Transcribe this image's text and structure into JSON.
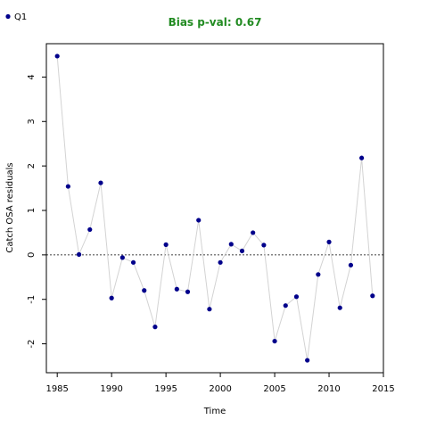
{
  "chart_data": {
    "type": "scatter",
    "title": "Bias p-val: 0.67",
    "xlabel": "Time",
    "ylabel": "Catch OSA residuals",
    "xlim": [
      1984,
      2015
    ],
    "ylim": [
      -2.65,
      4.75
    ],
    "xticks": [
      1985,
      1990,
      1995,
      2000,
      2005,
      2010,
      2015
    ],
    "yticks": [
      -2,
      -1,
      0,
      1,
      2,
      3,
      4
    ],
    "reference_line": 0,
    "legend": {
      "position": "top-left",
      "entries": [
        "Q1"
      ]
    },
    "colors": {
      "points": "#00008b",
      "line": "#d3d3d3",
      "title": "#228b22"
    },
    "series": [
      {
        "name": "Q1",
        "x": [
          1985,
          1986,
          1987,
          1988,
          1989,
          1990,
          1991,
          1992,
          1993,
          1994,
          1995,
          1996,
          1997,
          1998,
          1999,
          2000,
          2001,
          2002,
          2003,
          2004,
          2005,
          2006,
          2007,
          2008,
          2009,
          2010,
          2011,
          2012,
          2013,
          2014
        ],
        "y": [
          4.47,
          1.54,
          0.01,
          0.57,
          1.62,
          -0.97,
          -0.06,
          -0.17,
          -0.8,
          -1.62,
          0.23,
          -0.77,
          -0.83,
          0.78,
          -1.22,
          -0.17,
          0.24,
          0.09,
          0.5,
          0.22,
          -1.94,
          -1.14,
          -0.94,
          -2.37,
          -0.44,
          0.29,
          -1.19,
          -0.23,
          2.18,
          -0.92
        ]
      }
    ]
  }
}
